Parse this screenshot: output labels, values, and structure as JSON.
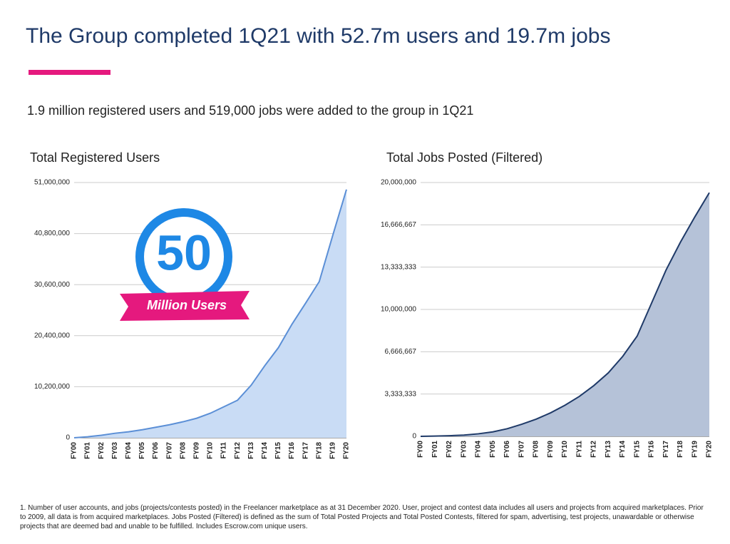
{
  "header": {
    "title": "The Group completed 1Q21 with 52.7m users and 19.7m jobs",
    "subtitle": "1.9 million registered users and 519,000 jobs were added to the group in 1Q21"
  },
  "badge": {
    "number": "50",
    "label": "Million Users"
  },
  "chart_data": [
    {
      "type": "area",
      "title": "Total Registered Users",
      "categories": [
        "FY00",
        "FY01",
        "FY02",
        "FY03",
        "FY04",
        "FY05",
        "FY06",
        "FY07",
        "FY08",
        "FY09",
        "FY10",
        "FY11",
        "FY12",
        "FY13",
        "FY14",
        "FY15",
        "FY16",
        "FY17",
        "FY18",
        "FY19",
        "FY20"
      ],
      "values": [
        0,
        200000,
        500000,
        900000,
        1200000,
        1600000,
        2100000,
        2600000,
        3200000,
        3900000,
        4900000,
        6200000,
        7500000,
        10500000,
        14400000,
        18000000,
        22700000,
        26900000,
        31200000,
        40500000,
        49600000
      ],
      "color": "#c9dcf5",
      "line_color": "#5b8fd6",
      "ylim": [
        0,
        51000000
      ],
      "yticks": [
        0,
        {
          "value": 10200000,
          "label": "10,200,000"
        },
        {
          "value": 20400000,
          "label": "20,400,000"
        },
        {
          "value": 30600000,
          "label": "30,600,000"
        },
        {
          "value": 40800000,
          "label": "40,800,000"
        },
        {
          "value": 51000000,
          "label": "51,000,000"
        }
      ],
      "grid": true
    },
    {
      "type": "area",
      "title": "Total Jobs Posted (Filtered)",
      "categories": [
        "FY00",
        "FY01",
        "FY02",
        "FY03",
        "FY04",
        "FY05",
        "FY06",
        "FY07",
        "FY08",
        "FY09",
        "FY10",
        "FY11",
        "FY12",
        "FY13",
        "FY14",
        "FY15",
        "FY16",
        "FY17",
        "FY18",
        "FY19",
        "FY20"
      ],
      "values": [
        0,
        20000,
        50000,
        100000,
        200000,
        350000,
        600000,
        950000,
        1350000,
        1850000,
        2450000,
        3150000,
        4000000,
        5000000,
        6300000,
        7900000,
        10500000,
        13100000,
        15300000,
        17300000,
        19200000
      ],
      "color": "#b5c2d8",
      "line_color": "#1f3a68",
      "ylim": [
        0,
        20000000
      ],
      "yticks": [
        0,
        {
          "value": 3333333,
          "label": "3,333,333"
        },
        {
          "value": 6666667,
          "label": "6,666,667"
        },
        {
          "value": 10000000,
          "label": "10,000,000"
        },
        {
          "value": 13333333,
          "label": "13,333,333"
        },
        {
          "value": 16666667,
          "label": "16,666,667"
        },
        {
          "value": 20000000,
          "label": "20,000,000"
        }
      ],
      "grid": true
    }
  ],
  "footnote": "1. Number of user accounts, and jobs (projects/contests posted) in the Freelancer marketplace as at 31 December 2020. User, project and contest data includes all users and projects from acquired marketplaces. Prior to 2009, all data is from acquired marketplaces. Jobs Posted (Filtered) is defined as the sum of Total Posted Projects and Total Posted Contests, filtered for spam, advertising, test projects, unawardable or otherwise projects that are deemed bad and unable to be fulfilled. Includes Escrow.com unique users."
}
